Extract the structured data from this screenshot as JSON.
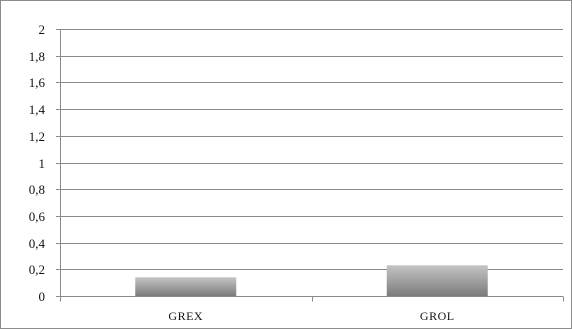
{
  "chart_data": {
    "type": "bar",
    "title": "",
    "xlabel": "",
    "ylabel": "",
    "categories": [
      "GREX",
      "GROL"
    ],
    "values": [
      0.14,
      0.23
    ],
    "ylim": [
      0,
      2
    ],
    "yticks": [
      0,
      0.2,
      0.4,
      0.6,
      0.8,
      1,
      1.2,
      1.4,
      1.6,
      1.8,
      2
    ],
    "ytick_labels": [
      "0",
      "0,2",
      "0,4",
      "0,6",
      "0,8",
      "1",
      "1,2",
      "1,4",
      "1,6",
      "1,8",
      "2"
    ],
    "grid": "horizontal",
    "legend": "none",
    "bar_color_light": "#c4c4c4",
    "bar_color_dark": "#7c7c7c",
    "grid_color": "#8a8a8a",
    "axis_color": "#8a8a8a"
  }
}
